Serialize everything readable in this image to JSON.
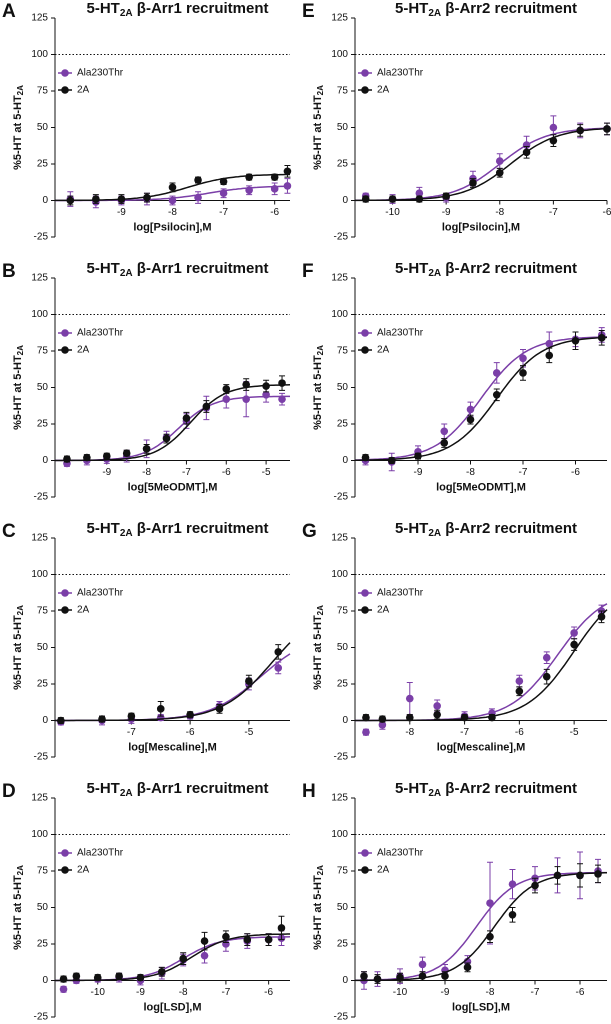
{
  "chart_data": [
    {
      "type": "scatter",
      "label": "A",
      "title": [
        "5-HT",
        "2A",
        " β-Arr1 recruitment"
      ],
      "xlabel": "log[Psilocin],M",
      "ylabel": [
        "%5-HT at 5-HT",
        "2A"
      ],
      "x": [
        -10,
        -9.5,
        -9,
        -8.5,
        -8,
        -7.5,
        -7,
        -6.5,
        -6,
        -5.75
      ],
      "xlim": [
        -10.3,
        -5.7
      ],
      "xticks": [
        -9,
        -8,
        -7,
        -6
      ],
      "ylim": [
        -25,
        125
      ],
      "yticks": [
        -25,
        0,
        25,
        50,
        75,
        100,
        125
      ],
      "reference_line": 100,
      "series": [
        {
          "name": "Ala230Thr",
          "color": "#7b3fa8",
          "values": [
            1,
            -1,
            0,
            1,
            0,
            2,
            5,
            7,
            8,
            10
          ],
          "errors": [
            5,
            4,
            3,
            4,
            3,
            4,
            3,
            3,
            4,
            5
          ],
          "fit": {
            "bottom": 0,
            "top": 10,
            "logec50": -7.3,
            "hill": 1
          }
        },
        {
          "name": "2A",
          "color": "#111111",
          "values": [
            0,
            1,
            1,
            2,
            9,
            14,
            13,
            16,
            16,
            20
          ],
          "errors": [
            3,
            3,
            3,
            3,
            3,
            2,
            2,
            2,
            2,
            4
          ],
          "fit": {
            "bottom": 0,
            "top": 18,
            "logec50": -7.7,
            "hill": 1
          }
        }
      ]
    },
    {
      "type": "scatter",
      "label": "E",
      "title": [
        "5-HT",
        "2A",
        " β-Arr2 recruitment"
      ],
      "xlabel": "log[Psilocin],M",
      "ylabel": [
        "%5-HT at 5-HT",
        "2A"
      ],
      "x": [
        -10.5,
        -10,
        -9.5,
        -9,
        -8.5,
        -8,
        -7.5,
        -7,
        -6.5,
        -6
      ],
      "xlim": [
        -10.7,
        -6
      ],
      "xticks": [
        -10,
        -9,
        -8,
        -7,
        -6
      ],
      "ylim": [
        -25,
        125
      ],
      "yticks": [
        -25,
        0,
        25,
        50,
        75,
        100,
        125
      ],
      "reference_line": 100,
      "series": [
        {
          "name": "Ala230Thr",
          "color": "#7b3fa8",
          "values": [
            3,
            1,
            5,
            2,
            15,
            27,
            38,
            50,
            48,
            49
          ],
          "errors": [
            2,
            3,
            4,
            3,
            5,
            5,
            6,
            8,
            5,
            4
          ],
          "fit": {
            "bottom": 0,
            "top": 50,
            "logec50": -8,
            "hill": 1
          }
        },
        {
          "name": "2A",
          "color": "#111111",
          "values": [
            1,
            1,
            1,
            3,
            12,
            19,
            33,
            41,
            48,
            49
          ],
          "errors": [
            2,
            2,
            2,
            2,
            3,
            3,
            4,
            4,
            4,
            4
          ],
          "fit": {
            "bottom": 0,
            "top": 50,
            "logec50": -7.8,
            "hill": 1
          }
        }
      ]
    },
    {
      "type": "scatter",
      "label": "B",
      "title": [
        "5-HT",
        "2A",
        " β-Arr1 recruitment"
      ],
      "xlabel": "log[5MeODMT],M",
      "ylabel": [
        "%5-HT at 5-HT",
        "2A"
      ],
      "x": [
        -10,
        -9.5,
        -9,
        -8.5,
        -8,
        -7.5,
        -7,
        -6.5,
        -6,
        -5.5,
        -5,
        -4.6
      ],
      "xlim": [
        -10.3,
        -4.4
      ],
      "xticks": [
        -9,
        -8,
        -7,
        -6,
        -5
      ],
      "ylim": [
        -25,
        125
      ],
      "yticks": [
        -25,
        0,
        25,
        50,
        75,
        100,
        125
      ],
      "reference_line": 100,
      "series": [
        {
          "name": "Ala230Thr",
          "color": "#7b3fa8",
          "values": [
            -2,
            0,
            1,
            3,
            8,
            16,
            27,
            36,
            42,
            42,
            45,
            42
          ],
          "errors": [
            2,
            3,
            3,
            4,
            6,
            4,
            5,
            8,
            6,
            12,
            5,
            4
          ],
          "fit": {
            "bottom": 0,
            "top": 44,
            "logec50": -7.2,
            "hill": 1
          }
        },
        {
          "name": "2A",
          "color": "#111111",
          "values": [
            1,
            2,
            3,
            5,
            8,
            15,
            29,
            37,
            49,
            52,
            51,
            53
          ],
          "errors": [
            2,
            2,
            2,
            2,
            3,
            3,
            4,
            4,
            3,
            4,
            4,
            5
          ],
          "fit": {
            "bottom": 0,
            "top": 52,
            "logec50": -6.9,
            "hill": 1
          }
        }
      ]
    },
    {
      "type": "scatter",
      "label": "F",
      "title": [
        "5-HT",
        "2A",
        " β-Arr2 recruitment"
      ],
      "xlabel": "log[5MeODMT],M",
      "ylabel": [
        "%5-HT at 5-HT",
        "2A"
      ],
      "x": [
        -10,
        -9.5,
        -9,
        -8.5,
        -8,
        -7.5,
        -7,
        -6.5,
        -6,
        -5.5
      ],
      "xlim": [
        -10.2,
        -5.4
      ],
      "xticks": [
        -9,
        -8,
        -7,
        -6
      ],
      "ylim": [
        -25,
        125
      ],
      "yticks": [
        -25,
        0,
        25,
        50,
        75,
        100,
        125
      ],
      "reference_line": 100,
      "series": [
        {
          "name": "Ala230Thr",
          "color": "#7b3fa8",
          "values": [
            0,
            -1,
            6,
            20,
            35,
            60,
            70,
            80,
            83,
            86
          ],
          "errors": [
            3,
            6,
            4,
            5,
            5,
            7,
            6,
            8,
            5,
            5
          ],
          "fit": {
            "bottom": 0,
            "top": 85,
            "logec50": -7.8,
            "hill": 1
          }
        },
        {
          "name": "2A",
          "color": "#111111",
          "values": [
            2,
            0,
            3,
            12,
            28,
            45,
            60,
            72,
            82,
            84
          ],
          "errors": [
            2,
            2,
            2,
            3,
            3,
            4,
            5,
            5,
            6,
            5
          ],
          "fit": {
            "bottom": 0,
            "top": 85,
            "logec50": -7.5,
            "hill": 1
          }
        }
      ]
    },
    {
      "type": "scatter",
      "label": "C",
      "title": [
        "5-HT",
        "2A",
        " β-Arr1 recruitment"
      ],
      "xlabel": "log[Mescaline],M",
      "ylabel": [
        "%5-HT at 5-HT",
        "2A"
      ],
      "x": [
        -8.2,
        -7.5,
        -7,
        -6.5,
        -6,
        -5.5,
        -5,
        -4.5
      ],
      "xlim": [
        -8.3,
        -4.3
      ],
      "xticks": [
        -7,
        -6,
        -5
      ],
      "ylim": [
        -25,
        125
      ],
      "yticks": [
        -25,
        0,
        25,
        50,
        75,
        100,
        125
      ],
      "reference_line": 100,
      "series": [
        {
          "name": "Ala230Thr",
          "color": "#7b3fa8",
          "values": [
            -1,
            0,
            1,
            2,
            3,
            10,
            25,
            36
          ],
          "errors": [
            2,
            3,
            3,
            2,
            2,
            3,
            4,
            4
          ],
          "fit": {
            "bottom": 0,
            "top": 60,
            "logec50": -4.8,
            "hill": 1
          }
        },
        {
          "name": "2A",
          "color": "#111111",
          "values": [
            0,
            1,
            3,
            8,
            4,
            8,
            27,
            47
          ],
          "errors": [
            2,
            2,
            2,
            5,
            2,
            3,
            4,
            5
          ],
          "fit": {
            "bottom": 0,
            "top": 80,
            "logec50": -4.6,
            "hill": 1
          }
        }
      ]
    },
    {
      "type": "scatter",
      "label": "G",
      "title": [
        "5-HT",
        "2A",
        " β-Arr2 recruitment"
      ],
      "xlabel": "log[Mescaline],M",
      "ylabel": [
        "%5-HT at 5-HT",
        "2A"
      ],
      "x": [
        -8.8,
        -8.5,
        -8,
        -7.5,
        -7,
        -6.5,
        -6,
        -5.5,
        -5,
        -4.5
      ],
      "xlim": [
        -9,
        -4.4
      ],
      "xticks": [
        -8,
        -7,
        -6,
        -5
      ],
      "ylim": [
        -25,
        125
      ],
      "yticks": [
        -25,
        0,
        25,
        50,
        75,
        100,
        125
      ],
      "reference_line": 100,
      "series": [
        {
          "name": "Ala230Thr",
          "color": "#7b3fa8",
          "values": [
            -8,
            -3,
            15,
            10,
            3,
            5,
            27,
            43,
            60,
            75
          ],
          "errors": [
            2,
            3,
            11,
            4,
            3,
            3,
            4,
            4,
            4,
            4
          ],
          "fit": {
            "bottom": 0,
            "top": 90,
            "logec50": -5.3,
            "hill": 1
          }
        },
        {
          "name": "2A",
          "color": "#111111",
          "values": [
            2,
            1,
            2,
            4,
            2,
            2,
            20,
            30,
            52,
            71
          ],
          "errors": [
            2,
            2,
            2,
            3,
            2,
            2,
            3,
            5,
            4,
            4
          ],
          "fit": {
            "bottom": 0,
            "top": 95,
            "logec50": -5,
            "hill": 1
          }
        }
      ]
    },
    {
      "type": "scatter",
      "label": "D",
      "title": [
        "5-HT",
        "2A",
        " β-Arr1 recruitment"
      ],
      "xlabel": "log[LSD],M",
      "ylabel": [
        "%5-HT at 5-HT",
        "2A"
      ],
      "x": [
        -10.8,
        -10.5,
        -10,
        -9.5,
        -9,
        -8.5,
        -8,
        -7.5,
        -7,
        -6.5,
        -6,
        -5.7
      ],
      "xlim": [
        -11,
        -5.5
      ],
      "xticks": [
        -10,
        -9,
        -8,
        -7,
        -6
      ],
      "ylim": [
        -25,
        125
      ],
      "yticks": [
        -25,
        0,
        25,
        50,
        75,
        100,
        125
      ],
      "reference_line": 100,
      "series": [
        {
          "name": "Ala230Thr",
          "color": "#7b3fa8",
          "values": [
            -6,
            0,
            1,
            2,
            0,
            5,
            14,
            17,
            25,
            27,
            28,
            29
          ],
          "errors": [
            2,
            2,
            2,
            3,
            3,
            4,
            4,
            5,
            5,
            5,
            4,
            5
          ],
          "fit": {
            "bottom": 0,
            "top": 30,
            "logec50": -8,
            "hill": 1
          }
        },
        {
          "name": "2A",
          "color": "#111111",
          "values": [
            1,
            3,
            2,
            3,
            2,
            6,
            15,
            27,
            30,
            28,
            28,
            36
          ],
          "errors": [
            2,
            2,
            2,
            2,
            2,
            3,
            4,
            6,
            4,
            4,
            4,
            8
          ],
          "fit": {
            "bottom": 0,
            "top": 32,
            "logec50": -7.8,
            "hill": 1
          }
        }
      ]
    },
    {
      "type": "scatter",
      "label": "H",
      "title": [
        "5-HT",
        "2A",
        " β-Arr2 recruitment"
      ],
      "xlabel": "log[LSD],M",
      "ylabel": [
        "%5-HT at 5-HT",
        "2A"
      ],
      "x": [
        -10.8,
        -10.5,
        -10,
        -9.5,
        -9,
        -8.5,
        -8,
        -7.5,
        -7,
        -6.5,
        -6,
        -5.6
      ],
      "xlim": [
        -11,
        -5.4
      ],
      "xticks": [
        -10,
        -9,
        -8,
        -7,
        -6
      ],
      "ylim": [
        -25,
        125
      ],
      "yticks": [
        -25,
        0,
        25,
        50,
        75,
        100,
        125
      ],
      "reference_line": 100,
      "series": [
        {
          "name": "Ala230Thr",
          "color": "#7b3fa8",
          "values": [
            0,
            1,
            3,
            11,
            7,
            13,
            53,
            66,
            70,
            72,
            72,
            75
          ],
          "errors": [
            6,
            5,
            5,
            5,
            4,
            4,
            28,
            10,
            8,
            12,
            16,
            8
          ],
          "fit": {
            "bottom": 0,
            "top": 74,
            "logec50": -8.3,
            "hill": 1
          }
        },
        {
          "name": "2A",
          "color": "#111111",
          "values": [
            3,
            1,
            2,
            3,
            3,
            9,
            30,
            45,
            65,
            72,
            72,
            73
          ],
          "errors": [
            3,
            3,
            3,
            3,
            3,
            3,
            4,
            5,
            5,
            6,
            8,
            6
          ],
          "fit": {
            "bottom": 0,
            "top": 74,
            "logec50": -7.9,
            "hill": 1
          }
        }
      ]
    }
  ]
}
